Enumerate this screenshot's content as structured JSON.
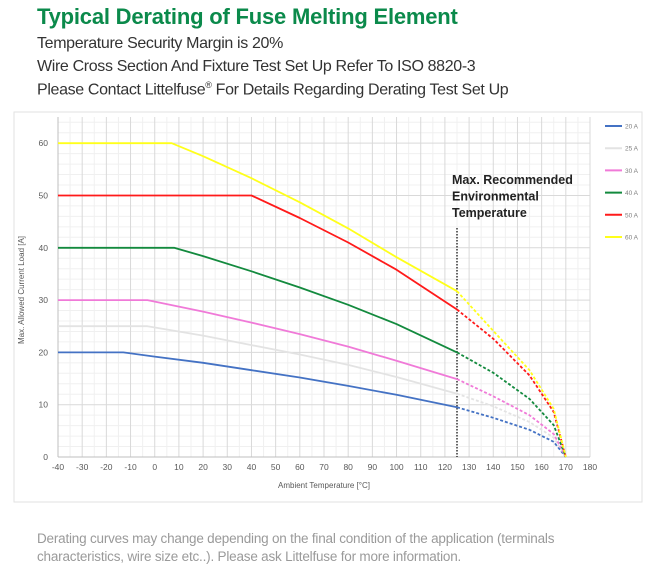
{
  "header": {
    "title": "Typical Derating of Fuse Melting Element",
    "line1": "Temperature Security Margin is 20%",
    "line2": "Wire Cross Section And Fixture Test Set Up Refer To ISO 8820-3",
    "line3_a": "Please Contact Littelfuse",
    "line3_sup": "®",
    "line3_b": " For Details Regarding Derating Test Set Up"
  },
  "footer": {
    "note": "Derating curves may change depending on the final condition of the application (terminals characteristics, wire size etc..). Please ask Littelfuse for more information."
  },
  "chart_data": {
    "type": "line",
    "xlabel": "Ambient Temperature [°C]",
    "ylabel": "Max. Allowed Current Load [A]",
    "xlim": [
      -40,
      180
    ],
    "ylim": [
      0,
      65
    ],
    "xticks": [
      -40,
      -30,
      -20,
      -10,
      0,
      10,
      20,
      30,
      40,
      50,
      60,
      70,
      80,
      90,
      100,
      110,
      120,
      130,
      140,
      150,
      160,
      170,
      180
    ],
    "yticks": [
      0,
      10,
      20,
      30,
      40,
      50,
      60
    ],
    "grid": true,
    "legend_position": "right",
    "annotation": {
      "lines": [
        "Max. Recommended",
        "Environmental",
        "Temperature"
      ],
      "x": 125,
      "note_style": "dotted vertical line; curves dashed beyond this temperature"
    },
    "series": [
      {
        "name": "20 A",
        "color": "#4472c4",
        "x": [
          -40,
          -13,
          0,
          20,
          40,
          60,
          80,
          100,
          125,
          140,
          155,
          165,
          170
        ],
        "y": [
          20,
          20,
          19.2,
          18.0,
          16.6,
          15.2,
          13.6,
          11.9,
          9.5,
          7.5,
          5.2,
          2.9,
          0
        ]
      },
      {
        "name": "25 A",
        "color": "#e3e3e3",
        "x": [
          -40,
          -3,
          20,
          40,
          60,
          80,
          100,
          125,
          140,
          155,
          165,
          170
        ],
        "y": [
          25,
          25,
          23.2,
          21.4,
          19.6,
          17.6,
          15.3,
          12.1,
          9.7,
          6.7,
          3.7,
          0
        ]
      },
      {
        "name": "30 A",
        "color": "#f07ad8",
        "x": [
          -40,
          -3,
          20,
          40,
          60,
          80,
          100,
          125,
          140,
          155,
          165,
          170
        ],
        "y": [
          30,
          30,
          27.8,
          25.7,
          23.5,
          21.1,
          18.4,
          14.9,
          11.6,
          8.0,
          4.4,
          0
        ]
      },
      {
        "name": "40 A",
        "color": "#138a3e",
        "x": [
          -40,
          8,
          20,
          40,
          60,
          80,
          100,
          125,
          140,
          155,
          165,
          170
        ],
        "y": [
          40,
          40,
          38.4,
          35.5,
          32.4,
          29.1,
          25.4,
          20.0,
          16.1,
          11.1,
          6.1,
          0
        ]
      },
      {
        "name": "50 A",
        "color": "#ff1a1a",
        "x": [
          -40,
          40,
          60,
          80,
          100,
          125,
          140,
          155,
          165,
          170
        ],
        "y": [
          50,
          50,
          45.7,
          41.0,
          35.8,
          28.2,
          22.6,
          15.6,
          8.6,
          0
        ]
      },
      {
        "name": "60 A",
        "color": "#ffff1a",
        "x": [
          -40,
          7,
          20,
          40,
          60,
          80,
          100,
          125,
          140,
          155,
          165,
          170
        ],
        "y": [
          60,
          60,
          57.5,
          53.3,
          48.7,
          43.7,
          38.2,
          31.7,
          24.1,
          16.6,
          9.2,
          0
        ]
      }
    ]
  }
}
